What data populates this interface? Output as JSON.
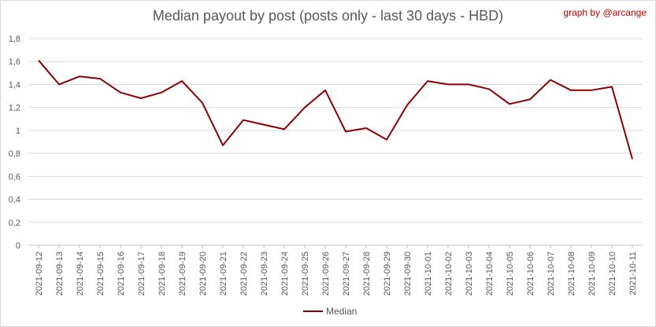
{
  "chart_data": {
    "type": "line",
    "title": "Median payout by post (posts only - last 30 days - HBD)",
    "credit": "graph by @arcange",
    "xlabel": "",
    "ylabel": "",
    "ylim": [
      0,
      1.8
    ],
    "yticks": [
      "0",
      "0,2",
      "0,4",
      "0,6",
      "0,8",
      "1",
      "1,2",
      "1,4",
      "1,6",
      "1,8"
    ],
    "grid": true,
    "legend_position": "bottom",
    "categories": [
      "2021-09-12",
      "2021-09-13",
      "2021-09-14",
      "2021-09-15",
      "2021-09-16",
      "2021-09-17",
      "2021-09-18",
      "2021-09-19",
      "2021-09-20",
      "2021-09-21",
      "2021-09-22",
      "2021-09-23",
      "2021-09-24",
      "2021-09-25",
      "2021-09-26",
      "2021-09-27",
      "2021-09-28",
      "2021-09-29",
      "2021-09-30",
      "2021-10-01",
      "2021-10-02",
      "2021-10-03",
      "2021-10-04",
      "2021-10-05",
      "2021-10-06",
      "2021-10-07",
      "2021-10-08",
      "2021-10-09",
      "2021-10-10",
      "2021-10-11"
    ],
    "series": [
      {
        "name": "Median",
        "color": "#8b0000",
        "values": [
          1.61,
          1.4,
          1.47,
          1.45,
          1.33,
          1.28,
          1.33,
          1.43,
          1.24,
          0.87,
          1.09,
          1.05,
          1.01,
          1.2,
          1.35,
          0.99,
          1.02,
          0.92,
          1.22,
          1.43,
          1.4,
          1.4,
          1.36,
          1.23,
          1.27,
          1.44,
          1.35,
          1.35,
          1.38,
          0.75
        ]
      }
    ]
  }
}
